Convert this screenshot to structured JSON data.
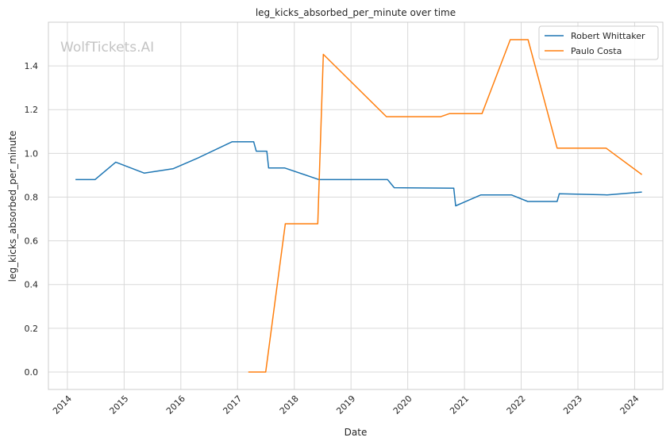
{
  "chart_data": {
    "type": "line",
    "title": "leg_kicks_absorbed_per_minute over time",
    "xlabel": "Date",
    "ylabel": "leg_kicks_absorbed_per_minute",
    "watermark": "WolfTickets.AI",
    "xlim": [
      "2013-09-01",
      "2024-07-01"
    ],
    "ylim": [
      -0.08,
      1.6
    ],
    "x_ticks": [
      "2014",
      "2015",
      "2016",
      "2017",
      "2018",
      "2019",
      "2020",
      "2021",
      "2022",
      "2023",
      "2024"
    ],
    "y_ticks": [
      "0.0",
      "0.2",
      "0.4",
      "0.6",
      "0.8",
      "1.0",
      "1.2",
      "1.4"
    ],
    "grid": true,
    "legend_position": "top-right",
    "series": [
      {
        "name": "Robert Whittaker",
        "color": "#1f77b4",
        "points": [
          [
            "2014-02-22",
            0.88
          ],
          [
            "2014-06-28",
            0.88
          ],
          [
            "2014-11-08",
            0.96
          ],
          [
            "2015-05-10",
            0.91
          ],
          [
            "2015-11-14",
            0.93
          ],
          [
            "2016-04-23",
            0.98
          ],
          [
            "2016-11-26",
            1.053
          ],
          [
            "2017-04-15",
            1.053
          ],
          [
            "2017-05-01",
            1.01
          ],
          [
            "2017-07-08",
            1.01
          ],
          [
            "2017-07-20",
            0.933
          ],
          [
            "2017-11-01",
            0.933
          ],
          [
            "2018-06-09",
            0.88
          ],
          [
            "2019-08-24",
            0.88
          ],
          [
            "2019-10-06",
            0.843
          ],
          [
            "2020-10-24",
            0.841
          ],
          [
            "2020-11-05",
            0.76
          ],
          [
            "2021-04-17",
            0.81
          ],
          [
            "2021-10-30",
            0.81
          ],
          [
            "2022-02-12",
            0.78
          ],
          [
            "2022-08-20",
            0.78
          ],
          [
            "2022-09-03",
            0.815
          ],
          [
            "2023-07-08",
            0.81
          ],
          [
            "2024-02-17",
            0.823
          ]
        ]
      },
      {
        "name": "Paulo Costa",
        "color": "#ff7f0e",
        "points": [
          [
            "2017-03-11",
            0.0
          ],
          [
            "2017-07-01",
            0.0
          ],
          [
            "2017-11-04",
            0.678
          ],
          [
            "2018-06-01",
            0.678
          ],
          [
            "2018-07-07",
            1.453
          ],
          [
            "2019-08-17",
            1.168
          ],
          [
            "2020-08-01",
            1.168
          ],
          [
            "2020-09-27",
            1.182
          ],
          [
            "2021-04-24",
            1.182
          ],
          [
            "2021-10-23",
            1.52
          ],
          [
            "2022-02-14",
            1.52
          ],
          [
            "2022-08-20",
            1.024
          ],
          [
            "2023-07-01",
            1.024
          ],
          [
            "2024-02-17",
            0.903
          ]
        ]
      }
    ]
  }
}
